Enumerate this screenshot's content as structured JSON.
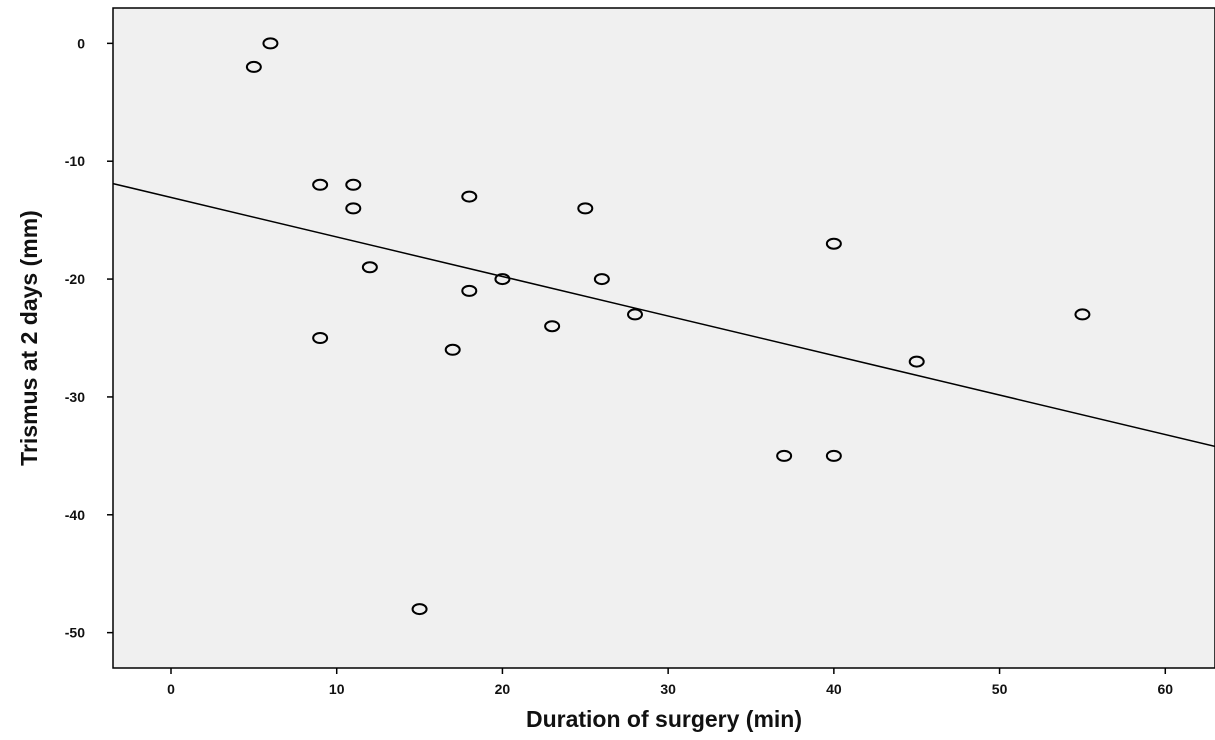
{
  "chart_data": {
    "type": "scatter",
    "title": "",
    "xlabel": "Duration of surgery (min)",
    "ylabel": "Trismus at 2 days (mm)",
    "xlim": [
      -3.5,
      63
    ],
    "ylim": [
      -53,
      3
    ],
    "x_ticks": [
      0,
      10,
      20,
      30,
      40,
      50,
      60
    ],
    "y_ticks": [
      0,
      -10,
      -20,
      -30,
      -40,
      -50
    ],
    "x_tick_labels": [
      "0",
      "10",
      "20",
      "30",
      "40",
      "50",
      "60"
    ],
    "y_tick_labels": [
      "0",
      "-10",
      "-20",
      "-30",
      "-40",
      "-50"
    ],
    "grid": false,
    "plot_background": "#f0f0f0",
    "marker_color": "#000000",
    "line_color": "#000000",
    "points": [
      {
        "x": 5,
        "y": -2
      },
      {
        "x": 6,
        "y": 0
      },
      {
        "x": 9,
        "y": -12
      },
      {
        "x": 11,
        "y": -12
      },
      {
        "x": 11,
        "y": -14
      },
      {
        "x": 12,
        "y": -19
      },
      {
        "x": 9,
        "y": -25
      },
      {
        "x": 18,
        "y": -13
      },
      {
        "x": 18,
        "y": -21
      },
      {
        "x": 20,
        "y": -20
      },
      {
        "x": 17,
        "y": -26
      },
      {
        "x": 23,
        "y": -24
      },
      {
        "x": 25,
        "y": -14
      },
      {
        "x": 26,
        "y": -20
      },
      {
        "x": 28,
        "y": -23
      },
      {
        "x": 15,
        "y": -48
      },
      {
        "x": 37,
        "y": -35
      },
      {
        "x": 40,
        "y": -35
      },
      {
        "x": 40,
        "y": -17
      },
      {
        "x": 45,
        "y": -27
      },
      {
        "x": 55,
        "y": -23
      }
    ],
    "fit_line": {
      "type": "linear",
      "x": [
        -3.5,
        63
      ],
      "y": [
        -11.9,
        -34.2
      ]
    }
  }
}
